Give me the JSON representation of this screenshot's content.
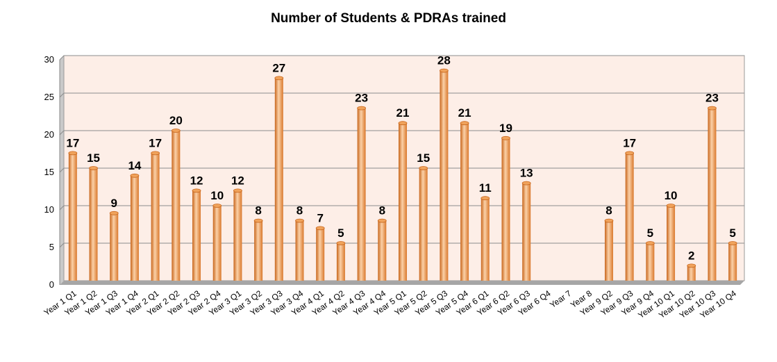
{
  "chart_data": {
    "type": "bar",
    "title": "Number of Students & PDRAs trained",
    "xlabel": "",
    "ylabel": "",
    "ylim": [
      0,
      30
    ],
    "yticks": [
      0,
      5,
      10,
      15,
      20,
      25,
      30
    ],
    "grid": true,
    "legend": "none",
    "categories": [
      "Year 1 Q1",
      "Year 1 Q2",
      "Year 1 Q3",
      "Year 1 Q4",
      "Year 2 Q1",
      "Year 2 Q2",
      "Year 2 Q3",
      "Year 2 Q4",
      "Year 3 Q1",
      "Year 3 Q2",
      "Year 3 Q3",
      "Year 3 Q4",
      "Year 4 Q1",
      "Year 4 Q2",
      "Year 4 Q3",
      "Year 4 Q4",
      "Year 5 Q1",
      "Year 5 Q2",
      "Year 5 Q3",
      "Year 5 Q4",
      "Year 6 Q1",
      "Year 6 Q2",
      "Year 6 Q3",
      "Year 6 Q4",
      "Year 7",
      "Year 8",
      "Year 9 Q2",
      "Year 9 Q3",
      "Year 9 Q4",
      "Year 10 Q1",
      "Year 10 Q2",
      "Year 10 Q3",
      "Year 10 Q4"
    ],
    "values": [
      17,
      15,
      9,
      14,
      17,
      20,
      12,
      10,
      12,
      8,
      27,
      8,
      7,
      5,
      23,
      8,
      21,
      15,
      28,
      21,
      11,
      19,
      13,
      null,
      null,
      null,
      8,
      17,
      5,
      10,
      2,
      23,
      5
    ],
    "colors": {
      "bar_light": "#fbd1a8",
      "bar_mid": "#f0a35c",
      "bar_dark": "#c8661c",
      "plot_bg": "#fdeee7",
      "wall_side": "#c9c9c9",
      "floor": "#a6a6a6",
      "grid": "#8c8c8c"
    }
  }
}
